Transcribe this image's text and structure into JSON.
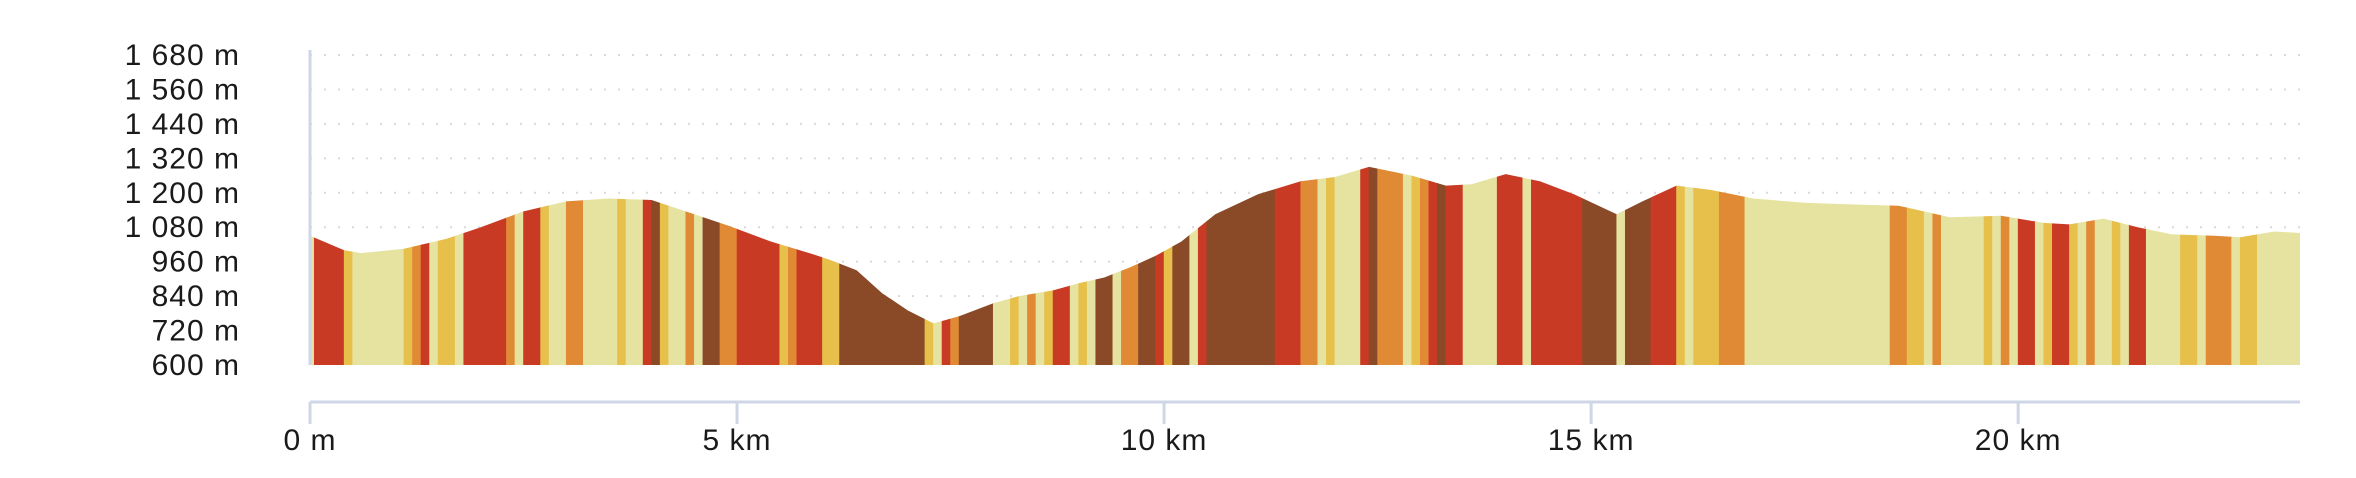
{
  "chart_data": {
    "type": "area",
    "title": "",
    "xlabel": "",
    "ylabel": "",
    "x_unit": "km",
    "y_unit": "m",
    "xlim": [
      0,
      23.3
    ],
    "ylim": [
      600,
      1680
    ],
    "x_ticks": [
      0,
      5,
      10,
      15,
      20
    ],
    "x_tick_labels": [
      "0 m",
      "5 km",
      "10 km",
      "15 km",
      "20 km"
    ],
    "y_ticks": [
      600,
      720,
      840,
      960,
      1080,
      1200,
      1320,
      1440,
      1560,
      1680
    ],
    "y_tick_labels": [
      "600 m",
      "720 m",
      "840 m",
      "960 m",
      "1 080 m",
      "1 200 m",
      "1 320 m",
      "1 440 m",
      "1 560 m",
      "1 680 m"
    ],
    "grid": "horizontal dotted",
    "profile": {
      "x": [
        0,
        0.4,
        0.6,
        1.1,
        1.6,
        2.0,
        2.5,
        3.0,
        3.5,
        4.0,
        4.5,
        4.9,
        5.4,
        5.9,
        6.1,
        6.4,
        6.7,
        7.0,
        7.3,
        7.6,
        8.0,
        8.3,
        8.7,
        9.0,
        9.3,
        9.6,
        9.9,
        10.2,
        10.6,
        11.1,
        11.6,
        12.0,
        12.4,
        12.9,
        13.3,
        13.6,
        14.0,
        14.4,
        14.8,
        15.3,
        15.6,
        16.0,
        16.4,
        16.9,
        17.5,
        18.0,
        18.6,
        19.2,
        19.8,
        20.3,
        20.6,
        21.0,
        21.4,
        21.8,
        22.3,
        22.6,
        23.0,
        23.3
      ],
      "y": [
        1050,
        1000,
        990,
        1005,
        1040,
        1080,
        1135,
        1170,
        1180,
        1175,
        1125,
        1085,
        1030,
        985,
        965,
        930,
        850,
        790,
        745,
        770,
        815,
        840,
        860,
        885,
        905,
        940,
        980,
        1030,
        1125,
        1195,
        1240,
        1255,
        1290,
        1260,
        1225,
        1230,
        1265,
        1240,
        1195,
        1125,
        1170,
        1225,
        1210,
        1180,
        1165,
        1160,
        1155,
        1115,
        1120,
        1095,
        1090,
        1110,
        1080,
        1055,
        1050,
        1045,
        1065,
        1060
      ]
    },
    "segment_colors": [
      "#c93a25",
      "#e08a35",
      "#e7c04b",
      "#e6e3a0",
      "#8a4a28"
    ],
    "segments": [
      {
        "x0": 0.0,
        "x1": 0.05,
        "color": "#e6e3a0"
      },
      {
        "x0": 0.05,
        "x1": 0.4,
        "color": "#c93a25"
      },
      {
        "x0": 0.4,
        "x1": 0.5,
        "color": "#e7c04b"
      },
      {
        "x0": 0.5,
        "x1": 1.1,
        "color": "#e6e3a0"
      },
      {
        "x0": 1.1,
        "x1": 1.2,
        "color": "#e7c04b"
      },
      {
        "x0": 1.2,
        "x1": 1.3,
        "color": "#e08a35"
      },
      {
        "x0": 1.3,
        "x1": 1.4,
        "color": "#c93a25"
      },
      {
        "x0": 1.4,
        "x1": 1.5,
        "color": "#e6e3a0"
      },
      {
        "x0": 1.5,
        "x1": 1.7,
        "color": "#e7c04b"
      },
      {
        "x0": 1.7,
        "x1": 1.8,
        "color": "#e6e3a0"
      },
      {
        "x0": 1.8,
        "x1": 2.3,
        "color": "#c93a25"
      },
      {
        "x0": 2.3,
        "x1": 2.4,
        "color": "#e08a35"
      },
      {
        "x0": 2.4,
        "x1": 2.5,
        "color": "#e6e3a0"
      },
      {
        "x0": 2.5,
        "x1": 2.7,
        "color": "#c93a25"
      },
      {
        "x0": 2.7,
        "x1": 2.8,
        "color": "#e7c04b"
      },
      {
        "x0": 2.8,
        "x1": 3.0,
        "color": "#e6e3a0"
      },
      {
        "x0": 3.0,
        "x1": 3.2,
        "color": "#e08a35"
      },
      {
        "x0": 3.2,
        "x1": 3.6,
        "color": "#e6e3a0"
      },
      {
        "x0": 3.6,
        "x1": 3.7,
        "color": "#e7c04b"
      },
      {
        "x0": 3.7,
        "x1": 3.9,
        "color": "#e6e3a0"
      },
      {
        "x0": 3.9,
        "x1": 4.0,
        "color": "#c93a25"
      },
      {
        "x0": 4.0,
        "x1": 4.1,
        "color": "#8a4a28"
      },
      {
        "x0": 4.1,
        "x1": 4.2,
        "color": "#e7c04b"
      },
      {
        "x0": 4.2,
        "x1": 4.4,
        "color": "#e6e3a0"
      },
      {
        "x0": 4.4,
        "x1": 4.5,
        "color": "#e08a35"
      },
      {
        "x0": 4.5,
        "x1": 4.6,
        "color": "#e6e3a0"
      },
      {
        "x0": 4.6,
        "x1": 4.8,
        "color": "#8a4a28"
      },
      {
        "x0": 4.8,
        "x1": 5.0,
        "color": "#e08a35"
      },
      {
        "x0": 5.0,
        "x1": 5.5,
        "color": "#c93a25"
      },
      {
        "x0": 5.5,
        "x1": 5.6,
        "color": "#e7c04b"
      },
      {
        "x0": 5.6,
        "x1": 5.7,
        "color": "#e08a35"
      },
      {
        "x0": 5.7,
        "x1": 6.0,
        "color": "#c93a25"
      },
      {
        "x0": 6.0,
        "x1": 6.2,
        "color": "#e7c04b"
      },
      {
        "x0": 6.2,
        "x1": 7.2,
        "color": "#8a4a28"
      },
      {
        "x0": 7.2,
        "x1": 7.3,
        "color": "#e7c04b"
      },
      {
        "x0": 7.3,
        "x1": 7.4,
        "color": "#e6e3a0"
      },
      {
        "x0": 7.4,
        "x1": 7.5,
        "color": "#c93a25"
      },
      {
        "x0": 7.5,
        "x1": 7.6,
        "color": "#e08a35"
      },
      {
        "x0": 7.6,
        "x1": 8.0,
        "color": "#8a4a28"
      },
      {
        "x0": 8.0,
        "x1": 8.2,
        "color": "#e6e3a0"
      },
      {
        "x0": 8.2,
        "x1": 8.3,
        "color": "#e7c04b"
      },
      {
        "x0": 8.3,
        "x1": 8.4,
        "color": "#e6e3a0"
      },
      {
        "x0": 8.4,
        "x1": 8.5,
        "color": "#e08a35"
      },
      {
        "x0": 8.5,
        "x1": 8.6,
        "color": "#e6e3a0"
      },
      {
        "x0": 8.6,
        "x1": 8.7,
        "color": "#e7c04b"
      },
      {
        "x0": 8.7,
        "x1": 8.9,
        "color": "#c93a25"
      },
      {
        "x0": 8.9,
        "x1": 9.0,
        "color": "#e6e3a0"
      },
      {
        "x0": 9.0,
        "x1": 9.1,
        "color": "#e7c04b"
      },
      {
        "x0": 9.1,
        "x1": 9.2,
        "color": "#e6e3a0"
      },
      {
        "x0": 9.2,
        "x1": 9.4,
        "color": "#8a4a28"
      },
      {
        "x0": 9.4,
        "x1": 9.5,
        "color": "#e6e3a0"
      },
      {
        "x0": 9.5,
        "x1": 9.7,
        "color": "#e08a35"
      },
      {
        "x0": 9.7,
        "x1": 9.9,
        "color": "#8a4a28"
      },
      {
        "x0": 9.9,
        "x1": 10.0,
        "color": "#c93a25"
      },
      {
        "x0": 10.0,
        "x1": 10.1,
        "color": "#e7c04b"
      },
      {
        "x0": 10.1,
        "x1": 10.3,
        "color": "#8a4a28"
      },
      {
        "x0": 10.3,
        "x1": 10.4,
        "color": "#e6e3a0"
      },
      {
        "x0": 10.4,
        "x1": 10.5,
        "color": "#c93a25"
      },
      {
        "x0": 10.5,
        "x1": 11.3,
        "color": "#8a4a28"
      },
      {
        "x0": 11.3,
        "x1": 11.6,
        "color": "#c93a25"
      },
      {
        "x0": 11.6,
        "x1": 11.8,
        "color": "#e08a35"
      },
      {
        "x0": 11.8,
        "x1": 11.9,
        "color": "#e6e3a0"
      },
      {
        "x0": 11.9,
        "x1": 12.0,
        "color": "#e7c04b"
      },
      {
        "x0": 12.0,
        "x1": 12.3,
        "color": "#e6e3a0"
      },
      {
        "x0": 12.3,
        "x1": 12.4,
        "color": "#c93a25"
      },
      {
        "x0": 12.4,
        "x1": 12.5,
        "color": "#8a4a28"
      },
      {
        "x0": 12.5,
        "x1": 12.8,
        "color": "#e08a35"
      },
      {
        "x0": 12.8,
        "x1": 12.9,
        "color": "#e6e3a0"
      },
      {
        "x0": 12.9,
        "x1": 13.0,
        "color": "#e7c04b"
      },
      {
        "x0": 13.0,
        "x1": 13.1,
        "color": "#e08a35"
      },
      {
        "x0": 13.1,
        "x1": 13.2,
        "color": "#c93a25"
      },
      {
        "x0": 13.2,
        "x1": 13.3,
        "color": "#8a4a28"
      },
      {
        "x0": 13.3,
        "x1": 13.5,
        "color": "#c93a25"
      },
      {
        "x0": 13.5,
        "x1": 13.9,
        "color": "#e6e3a0"
      },
      {
        "x0": 13.9,
        "x1": 14.2,
        "color": "#c93a25"
      },
      {
        "x0": 14.2,
        "x1": 14.3,
        "color": "#e6e3a0"
      },
      {
        "x0": 14.3,
        "x1": 14.9,
        "color": "#c93a25"
      },
      {
        "x0": 14.9,
        "x1": 15.3,
        "color": "#8a4a28"
      },
      {
        "x0": 15.3,
        "x1": 15.4,
        "color": "#e6e3a0"
      },
      {
        "x0": 15.4,
        "x1": 15.7,
        "color": "#8a4a28"
      },
      {
        "x0": 15.7,
        "x1": 16.0,
        "color": "#c93a25"
      },
      {
        "x0": 16.0,
        "x1": 16.1,
        "color": "#e7c04b"
      },
      {
        "x0": 16.1,
        "x1": 16.2,
        "color": "#e6e3a0"
      },
      {
        "x0": 16.2,
        "x1": 16.5,
        "color": "#e7c04b"
      },
      {
        "x0": 16.5,
        "x1": 16.8,
        "color": "#e08a35"
      },
      {
        "x0": 16.8,
        "x1": 16.9,
        "color": "#e6e3a0"
      },
      {
        "x0": 16.9,
        "x1": 18.5,
        "color": "#e6e3a0"
      },
      {
        "x0": 18.5,
        "x1": 18.7,
        "color": "#e08a35"
      },
      {
        "x0": 18.7,
        "x1": 18.9,
        "color": "#e7c04b"
      },
      {
        "x0": 18.9,
        "x1": 19.0,
        "color": "#e6e3a0"
      },
      {
        "x0": 19.0,
        "x1": 19.1,
        "color": "#e08a35"
      },
      {
        "x0": 19.1,
        "x1": 19.6,
        "color": "#e6e3a0"
      },
      {
        "x0": 19.6,
        "x1": 19.7,
        "color": "#e7c04b"
      },
      {
        "x0": 19.7,
        "x1": 19.8,
        "color": "#e6e3a0"
      },
      {
        "x0": 19.8,
        "x1": 19.9,
        "color": "#e08a35"
      },
      {
        "x0": 19.9,
        "x1": 20.0,
        "color": "#e6e3a0"
      },
      {
        "x0": 20.0,
        "x1": 20.2,
        "color": "#c93a25"
      },
      {
        "x0": 20.2,
        "x1": 20.3,
        "color": "#e6e3a0"
      },
      {
        "x0": 20.3,
        "x1": 20.4,
        "color": "#e7c04b"
      },
      {
        "x0": 20.4,
        "x1": 20.6,
        "color": "#c93a25"
      },
      {
        "x0": 20.6,
        "x1": 20.7,
        "color": "#e7c04b"
      },
      {
        "x0": 20.7,
        "x1": 20.8,
        "color": "#e6e3a0"
      },
      {
        "x0": 20.8,
        "x1": 20.9,
        "color": "#e08a35"
      },
      {
        "x0": 20.9,
        "x1": 21.1,
        "color": "#e6e3a0"
      },
      {
        "x0": 21.1,
        "x1": 21.2,
        "color": "#e7c04b"
      },
      {
        "x0": 21.2,
        "x1": 21.3,
        "color": "#e6e3a0"
      },
      {
        "x0": 21.3,
        "x1": 21.5,
        "color": "#c93a25"
      },
      {
        "x0": 21.5,
        "x1": 21.9,
        "color": "#e6e3a0"
      },
      {
        "x0": 21.9,
        "x1": 22.1,
        "color": "#e7c04b"
      },
      {
        "x0": 22.1,
        "x1": 22.2,
        "color": "#e6e3a0"
      },
      {
        "x0": 22.2,
        "x1": 22.5,
        "color": "#e08a35"
      },
      {
        "x0": 22.5,
        "x1": 22.6,
        "color": "#e6e3a0"
      },
      {
        "x0": 22.6,
        "x1": 22.8,
        "color": "#e7c04b"
      },
      {
        "x0": 22.8,
        "x1": 23.3,
        "color": "#e6e3a0"
      }
    ]
  }
}
